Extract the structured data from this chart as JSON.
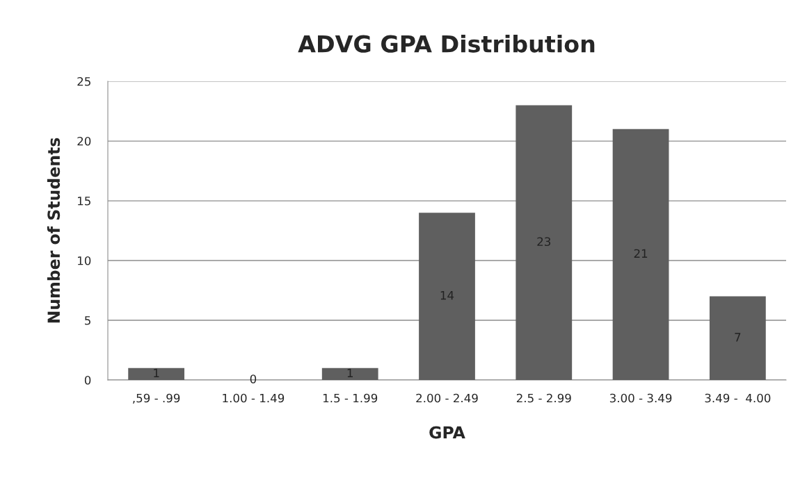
{
  "chart_data": {
    "type": "bar",
    "title": "ADVG GPA Distribution",
    "xlabel": "GPA",
    "ylabel": "Number of Students",
    "categories": [
      ",59 - .99",
      "1.00 - 1.49",
      "1.5 - 1.99",
      "2.00 - 2.49",
      "2.5 - 2.99",
      "3.00 - 3.49",
      "3.49 -  4.00"
    ],
    "values": [
      1,
      0,
      1,
      14,
      23,
      21,
      7
    ],
    "color": "#5f5f5f",
    "ylim": [
      0,
      25
    ],
    "yticks": [
      0,
      5,
      10,
      15,
      20,
      25
    ],
    "grid": "y",
    "data_labels": true
  }
}
